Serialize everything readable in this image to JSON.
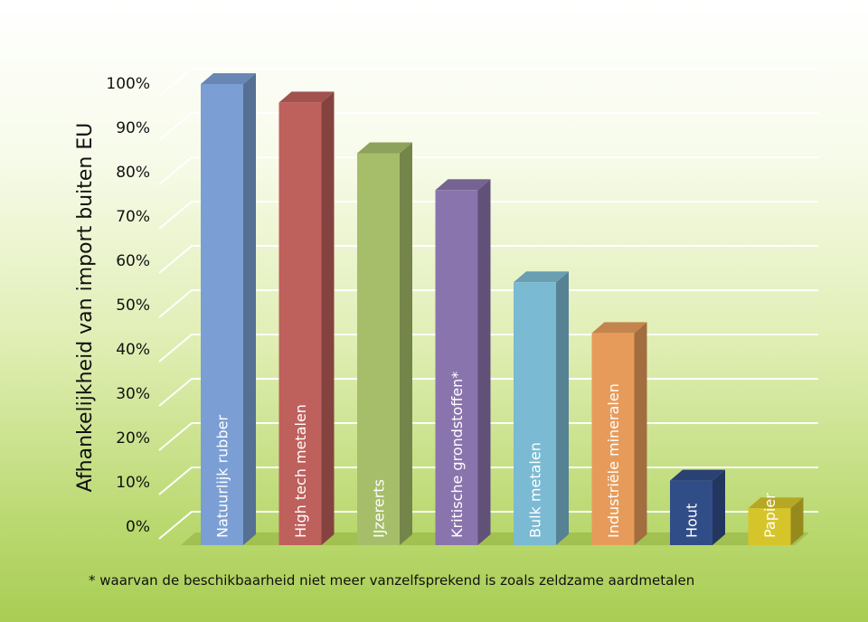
{
  "chart_data": {
    "type": "bar",
    "ylabel": "Afhankelijkheid van import buiten EU",
    "ylim": [
      0,
      100
    ],
    "yticks": [
      "0%",
      "10%",
      "20%",
      "30%",
      "40%",
      "50%",
      "60%",
      "70%",
      "80%",
      "90%",
      "100%"
    ],
    "grid": true,
    "categories": [
      "Natuurlijk rubber",
      "High tech metalen",
      "IJzererts",
      "Kritische grondstoffen*",
      "Bulk metalen",
      "Industriële mineralen",
      "Hout",
      "Papier"
    ],
    "values": [
      100,
      96,
      85,
      77,
      57,
      46,
      14,
      8
    ],
    "colors": [
      "#7b9fd4",
      "#be605c",
      "#a6be6a",
      "#8a74ad",
      "#7bbad3",
      "#e79b5a",
      "#314d88",
      "#d6c52a"
    ],
    "footnote": "* waarvan de beschikbaarheid niet meer vanzelfsprekend is zoals zeldzame aardmetalen"
  }
}
